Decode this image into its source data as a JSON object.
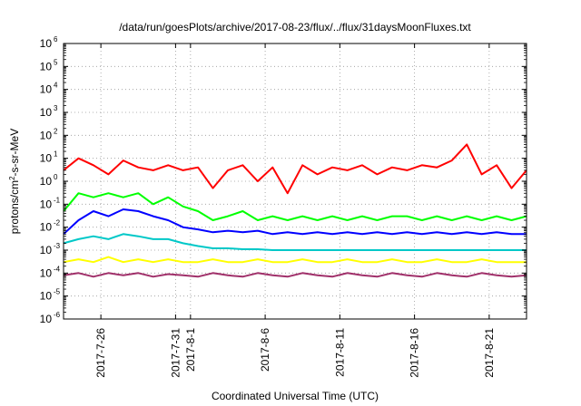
{
  "chart_data": {
    "type": "line",
    "title": "/data/run/goesPlots/archive/2017-08-23/flux/../flux/31daysMoonFluxes.txt",
    "xlabel": "Coordinated Universal Time (UTC)",
    "ylabel": {
      "prefix": "protons/cm",
      "sup": "2",
      "suffix": "-s-sr-MeV"
    },
    "yscale": "log",
    "ylim": [
      1e-06,
      1000000.0
    ],
    "y_ticks": [
      {
        "value": 1e-06,
        "base": "10",
        "exp": "-6"
      },
      {
        "value": 1e-05,
        "base": "10",
        "exp": "-5"
      },
      {
        "value": 0.0001,
        "base": "10",
        "exp": "-4"
      },
      {
        "value": 0.001,
        "base": "10",
        "exp": "-3"
      },
      {
        "value": 0.01,
        "base": "10",
        "exp": "-2"
      },
      {
        "value": 0.1,
        "base": "10",
        "exp": "-1"
      },
      {
        "value": 1.0,
        "base": "10",
        "exp": "0"
      },
      {
        "value": 10.0,
        "base": "10",
        "exp": "1"
      },
      {
        "value": 100.0,
        "base": "10",
        "exp": "2"
      },
      {
        "value": 1000.0,
        "base": "10",
        "exp": "3"
      },
      {
        "value": 10000.0,
        "base": "10",
        "exp": "4"
      },
      {
        "value": 100000.0,
        "base": "10",
        "exp": "5"
      },
      {
        "value": 1000000.0,
        "base": "10",
        "exp": "6"
      }
    ],
    "xlim": [
      "2017-07-23T12:00",
      "2017-08-23T12:00"
    ],
    "x_ticks": [
      {
        "date": "2017-07-26",
        "label": "2017-7-26"
      },
      {
        "date": "2017-07-31",
        "label": "2017-7-31"
      },
      {
        "date": "2017-08-01",
        "label": "2017-8-1"
      },
      {
        "date": "2017-08-06",
        "label": "2017-8-6"
      },
      {
        "date": "2017-08-11",
        "label": "2017-8-11"
      },
      {
        "date": "2017-08-16",
        "label": "2017-8-16"
      },
      {
        "date": "2017-08-21",
        "label": "2017-8-21"
      }
    ],
    "grid": true,
    "series": [
      {
        "color": "#ff0000",
        "x": [
          "2017-07-23T12:00",
          "2017-07-24T12:00",
          "2017-07-25T12:00",
          "2017-07-26T12:00",
          "2017-07-27T12:00",
          "2017-07-28T12:00",
          "2017-07-29T12:00",
          "2017-07-30T12:00",
          "2017-07-31T12:00",
          "2017-08-01T12:00",
          "2017-08-02T12:00",
          "2017-08-03T12:00",
          "2017-08-04T12:00",
          "2017-08-05T12:00",
          "2017-08-06T12:00",
          "2017-08-07T12:00",
          "2017-08-08T12:00",
          "2017-08-09T12:00",
          "2017-08-10T12:00",
          "2017-08-11T12:00",
          "2017-08-12T12:00",
          "2017-08-13T12:00",
          "2017-08-14T12:00",
          "2017-08-15T12:00",
          "2017-08-16T12:00",
          "2017-08-17T12:00",
          "2017-08-18T12:00",
          "2017-08-19T12:00",
          "2017-08-20T12:00",
          "2017-08-21T12:00",
          "2017-08-22T12:00",
          "2017-08-23T12:00"
        ],
        "y": [
          3,
          10,
          5,
          2,
          8,
          4,
          3,
          5,
          3,
          4,
          0.5,
          3,
          5,
          1,
          4,
          0.3,
          5,
          2,
          4,
          3,
          5,
          2,
          4,
          3,
          5,
          4,
          8,
          40,
          2,
          5,
          0.5,
          3
        ]
      },
      {
        "color": "#00ff00",
        "x": [
          "2017-07-23T12:00",
          "2017-07-24T12:00",
          "2017-07-25T12:00",
          "2017-07-26T12:00",
          "2017-07-27T12:00",
          "2017-07-28T12:00",
          "2017-07-29T12:00",
          "2017-07-30T12:00",
          "2017-07-31T12:00",
          "2017-08-01T12:00",
          "2017-08-02T12:00",
          "2017-08-03T12:00",
          "2017-08-04T12:00",
          "2017-08-05T12:00",
          "2017-08-06T12:00",
          "2017-08-07T12:00",
          "2017-08-08T12:00",
          "2017-08-09T12:00",
          "2017-08-10T12:00",
          "2017-08-11T12:00",
          "2017-08-12T12:00",
          "2017-08-13T12:00",
          "2017-08-14T12:00",
          "2017-08-15T12:00",
          "2017-08-16T12:00",
          "2017-08-17T12:00",
          "2017-08-18T12:00",
          "2017-08-19T12:00",
          "2017-08-20T12:00",
          "2017-08-21T12:00",
          "2017-08-22T12:00",
          "2017-08-23T12:00"
        ],
        "y": [
          0.05,
          0.3,
          0.2,
          0.3,
          0.2,
          0.3,
          0.1,
          0.2,
          0.08,
          0.05,
          0.02,
          0.03,
          0.05,
          0.02,
          0.03,
          0.02,
          0.03,
          0.02,
          0.03,
          0.02,
          0.03,
          0.02,
          0.03,
          0.03,
          0.02,
          0.03,
          0.02,
          0.03,
          0.02,
          0.03,
          0.02,
          0.03
        ]
      },
      {
        "color": "#0000ff",
        "x": [
          "2017-07-23T12:00",
          "2017-07-24T12:00",
          "2017-07-25T12:00",
          "2017-07-26T12:00",
          "2017-07-27T12:00",
          "2017-07-28T12:00",
          "2017-07-29T12:00",
          "2017-07-30T12:00",
          "2017-07-31T12:00",
          "2017-08-01T12:00",
          "2017-08-02T12:00",
          "2017-08-03T12:00",
          "2017-08-04T12:00",
          "2017-08-05T12:00",
          "2017-08-06T12:00",
          "2017-08-07T12:00",
          "2017-08-08T12:00",
          "2017-08-09T12:00",
          "2017-08-10T12:00",
          "2017-08-11T12:00",
          "2017-08-12T12:00",
          "2017-08-13T12:00",
          "2017-08-14T12:00",
          "2017-08-15T12:00",
          "2017-08-16T12:00",
          "2017-08-17T12:00",
          "2017-08-18T12:00",
          "2017-08-19T12:00",
          "2017-08-20T12:00",
          "2017-08-21T12:00",
          "2017-08-22T12:00",
          "2017-08-23T12:00"
        ],
        "y": [
          0.005,
          0.02,
          0.05,
          0.03,
          0.06,
          0.05,
          0.03,
          0.02,
          0.01,
          0.008,
          0.006,
          0.007,
          0.006,
          0.007,
          0.005,
          0.006,
          0.005,
          0.006,
          0.005,
          0.006,
          0.005,
          0.006,
          0.005,
          0.006,
          0.005,
          0.006,
          0.005,
          0.006,
          0.005,
          0.006,
          0.005,
          0.005
        ]
      },
      {
        "color": "#00c8c8",
        "x": [
          "2017-07-23T12:00",
          "2017-07-24T12:00",
          "2017-07-25T12:00",
          "2017-07-26T12:00",
          "2017-07-27T12:00",
          "2017-07-28T12:00",
          "2017-07-29T12:00",
          "2017-07-30T12:00",
          "2017-07-31T12:00",
          "2017-08-01T12:00",
          "2017-08-02T12:00",
          "2017-08-03T12:00",
          "2017-08-04T12:00",
          "2017-08-05T12:00",
          "2017-08-06T12:00",
          "2017-08-07T12:00",
          "2017-08-08T12:00",
          "2017-08-09T12:00",
          "2017-08-10T12:00",
          "2017-08-11T12:00",
          "2017-08-12T12:00",
          "2017-08-13T12:00",
          "2017-08-14T12:00",
          "2017-08-15T12:00",
          "2017-08-16T12:00",
          "2017-08-17T12:00",
          "2017-08-18T12:00",
          "2017-08-19T12:00",
          "2017-08-20T12:00",
          "2017-08-21T12:00",
          "2017-08-22T12:00",
          "2017-08-23T12:00"
        ],
        "y": [
          0.002,
          0.003,
          0.004,
          0.003,
          0.005,
          0.004,
          0.003,
          0.003,
          0.002,
          0.0015,
          0.0012,
          0.0012,
          0.0011,
          0.0011,
          0.001,
          0.001,
          0.001,
          0.001,
          0.001,
          0.001,
          0.001,
          0.001,
          0.001,
          0.001,
          0.001,
          0.001,
          0.001,
          0.001,
          0.001,
          0.001,
          0.001,
          0.001
        ]
      },
      {
        "color": "#ffff00",
        "x": [
          "2017-07-23T12:00",
          "2017-07-24T12:00",
          "2017-07-25T12:00",
          "2017-07-26T12:00",
          "2017-07-27T12:00",
          "2017-07-28T12:00",
          "2017-07-29T12:00",
          "2017-07-30T12:00",
          "2017-07-31T12:00",
          "2017-08-01T12:00",
          "2017-08-02T12:00",
          "2017-08-03T12:00",
          "2017-08-04T12:00",
          "2017-08-05T12:00",
          "2017-08-06T12:00",
          "2017-08-07T12:00",
          "2017-08-08T12:00",
          "2017-08-09T12:00",
          "2017-08-10T12:00",
          "2017-08-11T12:00",
          "2017-08-12T12:00",
          "2017-08-13T12:00",
          "2017-08-14T12:00",
          "2017-08-15T12:00",
          "2017-08-16T12:00",
          "2017-08-17T12:00",
          "2017-08-18T12:00",
          "2017-08-19T12:00",
          "2017-08-20T12:00",
          "2017-08-21T12:00",
          "2017-08-22T12:00",
          "2017-08-23T12:00"
        ],
        "y": [
          0.0003,
          0.0004,
          0.0003,
          0.0005,
          0.0003,
          0.0004,
          0.0003,
          0.0004,
          0.0003,
          0.0003,
          0.0004,
          0.0003,
          0.0003,
          0.0004,
          0.0003,
          0.0003,
          0.0004,
          0.0003,
          0.0003,
          0.0004,
          0.0003,
          0.0003,
          0.0004,
          0.0003,
          0.0003,
          0.0004,
          0.0003,
          0.0003,
          0.0004,
          0.0003,
          0.0003,
          0.0003
        ]
      },
      {
        "color": "#a0306a",
        "x": [
          "2017-07-23T12:00",
          "2017-07-24T12:00",
          "2017-07-25T12:00",
          "2017-07-26T12:00",
          "2017-07-27T12:00",
          "2017-07-28T12:00",
          "2017-07-29T12:00",
          "2017-07-30T12:00",
          "2017-07-31T12:00",
          "2017-08-01T12:00",
          "2017-08-02T12:00",
          "2017-08-03T12:00",
          "2017-08-04T12:00",
          "2017-08-05T12:00",
          "2017-08-06T12:00",
          "2017-08-07T12:00",
          "2017-08-08T12:00",
          "2017-08-09T12:00",
          "2017-08-10T12:00",
          "2017-08-11T12:00",
          "2017-08-12T12:00",
          "2017-08-13T12:00",
          "2017-08-14T12:00",
          "2017-08-15T12:00",
          "2017-08-16T12:00",
          "2017-08-17T12:00",
          "2017-08-18T12:00",
          "2017-08-19T12:00",
          "2017-08-20T12:00",
          "2017-08-21T12:00",
          "2017-08-22T12:00",
          "2017-08-23T12:00"
        ],
        "y": [
          8e-05,
          0.0001,
          7e-05,
          0.0001,
          8e-05,
          0.0001,
          7e-05,
          9e-05,
          8e-05,
          7e-05,
          0.0001,
          8e-05,
          7e-05,
          0.0001,
          8e-05,
          7e-05,
          0.0001,
          8e-05,
          7e-05,
          0.0001,
          8e-05,
          7e-05,
          0.0001,
          8e-05,
          7e-05,
          0.0001,
          8e-05,
          7e-05,
          0.0001,
          8e-05,
          7e-05,
          8e-05
        ]
      }
    ]
  }
}
